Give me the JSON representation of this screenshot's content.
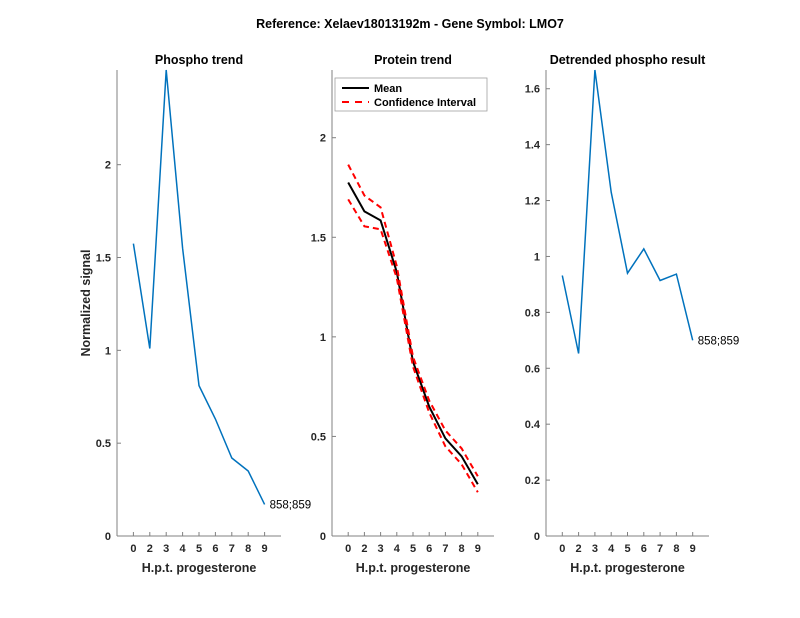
{
  "figure_title": "Reference:  Xelaev18013192m - Gene Symbol:  LMO7",
  "colors": {
    "phospho_line": "#0072BD",
    "mean_line": "#000000",
    "ci_line": "#FF0000",
    "axis": "#808080",
    "text": "#262626"
  },
  "chart_data": [
    {
      "type": "line",
      "title": "Phospho trend",
      "xlabel": "H.p.t. progesterone",
      "ylabel": "Normalized signal",
      "categories": [
        "0",
        "2",
        "3",
        "4",
        "5",
        "6",
        "7",
        "8",
        "9"
      ],
      "ylim": [
        0,
        2.51
      ],
      "yticks": [
        0,
        0.5,
        1,
        1.5,
        2
      ],
      "ytick_labels": [
        "0",
        "0.5",
        "1",
        "1.5",
        "2"
      ],
      "grid": false,
      "series": [
        {
          "name": "phospho",
          "values": [
            1.575,
            1.01,
            2.51,
            1.55,
            0.81,
            0.63,
            0.42,
            0.35,
            0.17
          ]
        }
      ],
      "annotation": {
        "text": "858;859",
        "at_category": "9"
      }
    },
    {
      "type": "line",
      "title": "Protein trend",
      "xlabel": "H.p.t. progesterone",
      "ylabel": "",
      "categories": [
        "0",
        "2",
        "3",
        "4",
        "5",
        "6",
        "7",
        "8",
        "9"
      ],
      "ylim": [
        0,
        2.34
      ],
      "yticks": [
        0,
        0.5,
        1,
        1.5,
        2
      ],
      "ytick_labels": [
        "0",
        "0.5",
        "1",
        "1.5",
        "2"
      ],
      "grid": false,
      "legend": {
        "placement": "top-left",
        "entries": [
          "Mean",
          "Confidence Interval"
        ]
      },
      "series": [
        {
          "name": "Mean",
          "style": "solid",
          "values": [
            1.775,
            1.63,
            1.585,
            1.325,
            0.875,
            0.65,
            0.49,
            0.4,
            0.26
          ]
        },
        {
          "name": "Confidence Interval upper",
          "style": "dashed",
          "values": [
            1.865,
            1.71,
            1.65,
            1.355,
            0.9,
            0.68,
            0.53,
            0.44,
            0.3
          ]
        },
        {
          "name": "Confidence Interval lower",
          "style": "dashed",
          "values": [
            1.69,
            1.555,
            1.54,
            1.295,
            0.85,
            0.62,
            0.45,
            0.36,
            0.22
          ]
        }
      ]
    },
    {
      "type": "line",
      "title": "Detrended phospho result",
      "xlabel": "H.p.t. progesterone",
      "ylabel": "",
      "categories": [
        "0",
        "2",
        "3",
        "4",
        "5",
        "6",
        "7",
        "8",
        "9"
      ],
      "ylim": [
        0,
        1.667
      ],
      "yticks": [
        0,
        0.2,
        0.4,
        0.6,
        0.8,
        1,
        1.2,
        1.4,
        1.6
      ],
      "ytick_labels": [
        "0",
        "0.2",
        "0.4",
        "0.6",
        "0.8",
        "1",
        "1.2",
        "1.4",
        "1.6"
      ],
      "grid": false,
      "series": [
        {
          "name": "detrended",
          "values": [
            0.932,
            0.653,
            1.667,
            1.23,
            0.94,
            1.027,
            0.914,
            0.937,
            0.7
          ]
        }
      ],
      "annotation": {
        "text": "858;859",
        "at_category": "9"
      }
    }
  ]
}
